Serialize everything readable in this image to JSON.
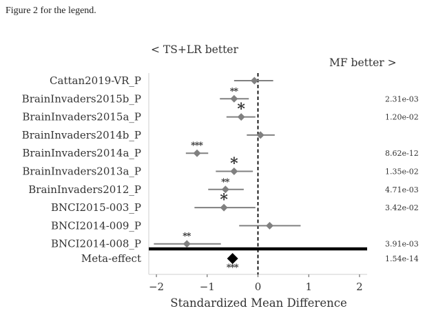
{
  "caption": "Figure 2 for the legend.",
  "chart_data": {
    "type": "forest",
    "xlabel": "Standardized Mean Difference",
    "xlim": [
      -2.15,
      2.15
    ],
    "xticks": [
      -2,
      -1,
      0,
      1,
      2
    ],
    "xtick_labels": [
      "−2",
      "−1",
      "0",
      "1",
      "2"
    ],
    "left_annotation": "< TS+LR better",
    "right_annotation": "MF better >",
    "grid": false,
    "reference_line": 0,
    "colors": {
      "point": "#808080",
      "ci": "#808080",
      "meta": "#000000",
      "star": "#ff0000",
      "zero_line": "#000000"
    },
    "studies": [
      {
        "name": "Cattan2019-VR_P",
        "smd": -0.07,
        "ci": [
          -0.47,
          0.3
        ],
        "stars": "",
        "pvalue": ""
      },
      {
        "name": "BrainInvaders2015b_P",
        "smd": -0.47,
        "ci": [
          -0.75,
          -0.18
        ],
        "stars": "**",
        "pvalue": "2.31e-03"
      },
      {
        "name": "BrainInvaders2015a_P",
        "smd": -0.33,
        "ci": [
          -0.62,
          -0.05
        ],
        "stars": "*",
        "pvalue": "1.20e-02"
      },
      {
        "name": "BrainInvaders2014b_P",
        "smd": 0.05,
        "ci": [
          -0.22,
          0.33
        ],
        "stars": "",
        "pvalue": ""
      },
      {
        "name": "BrainInvaders2014a_P",
        "smd": -1.2,
        "ci": [
          -1.42,
          -0.98
        ],
        "stars": "***",
        "pvalue": "8.62e-12"
      },
      {
        "name": "BrainInvaders2013a_P",
        "smd": -0.47,
        "ci": [
          -0.83,
          -0.1
        ],
        "stars": "*",
        "pvalue": "1.35e-02"
      },
      {
        "name": "BrainInvaders2012_P",
        "smd": -0.64,
        "ci": [
          -0.98,
          -0.28
        ],
        "stars": "**",
        "pvalue": "4.71e-03"
      },
      {
        "name": "BNCI2015-003_P",
        "smd": -0.67,
        "ci": [
          -1.25,
          -0.05
        ],
        "stars": "*",
        "pvalue": "3.42e-02"
      },
      {
        "name": "BNCI2014-009_P",
        "smd": 0.23,
        "ci": [
          -0.37,
          0.84
        ],
        "stars": "",
        "pvalue": ""
      },
      {
        "name": "BNCI2014-008_P",
        "smd": -1.4,
        "ci": [
          -2.05,
          -0.73
        ],
        "stars": "**",
        "pvalue": "3.91e-03"
      }
    ],
    "meta": {
      "name": "Meta-effect",
      "smd": -0.5,
      "stars": "***",
      "pvalue": "1.54e-14"
    }
  }
}
